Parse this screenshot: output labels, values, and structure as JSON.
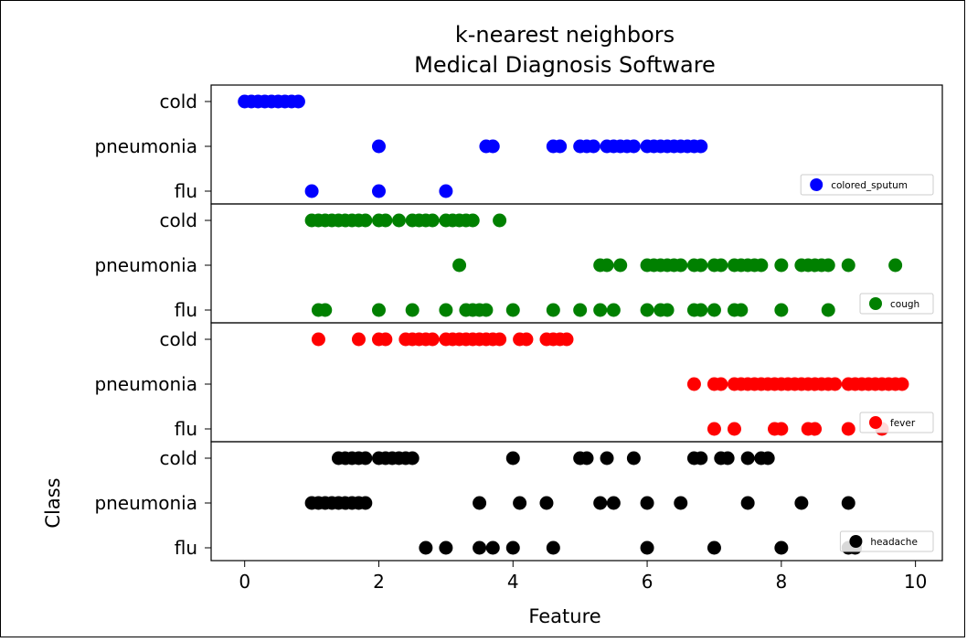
{
  "chart_data": {
    "type": "scatter",
    "title": "k-nearest neighbors\nMedical Diagnosis Software",
    "title_lines": [
      "k-nearest neighbors",
      "Medical Diagnosis Software"
    ],
    "xlabel": "Feature",
    "ylabel": "Class",
    "xlim": [
      -0.5,
      10.4
    ],
    "xticks": [
      0,
      2,
      4,
      6,
      8,
      10
    ],
    "categories": [
      "cold",
      "pneumonia",
      "flu"
    ],
    "grid": false,
    "legend_position": "lower right of each panel",
    "panels": [
      {
        "name": "colored_sputum",
        "color": "#0000ff",
        "series": {
          "cold": [
            0,
            0.1,
            0.2,
            0.3,
            0.4,
            0.5,
            0.6,
            0.7,
            0.8
          ],
          "pneumonia": [
            2.0,
            3.6,
            3.7,
            4.6,
            4.7,
            5.0,
            5.1,
            5.2,
            5.4,
            5.5,
            5.6,
            5.7,
            5.8,
            6.0,
            6.1,
            6.2,
            6.3,
            6.4,
            6.5,
            6.6,
            6.7,
            6.8
          ],
          "flu": [
            1.0,
            2.0,
            3.0
          ]
        }
      },
      {
        "name": "cough",
        "color": "#008000",
        "series": {
          "cold": [
            1.0,
            1.1,
            1.2,
            1.3,
            1.4,
            1.5,
            1.6,
            1.7,
            1.8,
            2.0,
            2.1,
            2.3,
            2.5,
            2.6,
            2.7,
            2.8,
            3.0,
            3.1,
            3.2,
            3.3,
            3.4,
            3.8
          ],
          "pneumonia": [
            3.2,
            5.3,
            5.4,
            5.6,
            6.0,
            6.1,
            6.2,
            6.3,
            6.4,
            6.5,
            6.7,
            6.8,
            7.0,
            7.1,
            7.3,
            7.4,
            7.5,
            7.6,
            7.7,
            8.0,
            8.3,
            8.4,
            8.5,
            8.6,
            8.7,
            9.0,
            9.7
          ],
          "flu": [
            1.1,
            1.2,
            2.0,
            2.5,
            3.0,
            3.3,
            3.4,
            3.5,
            3.6,
            4.0,
            4.6,
            5.0,
            5.3,
            5.5,
            6.0,
            6.2,
            6.3,
            6.7,
            6.8,
            7.0,
            7.3,
            7.4,
            8.0,
            8.7
          ]
        }
      },
      {
        "name": "fever",
        "color": "#ff0000",
        "series": {
          "cold": [
            1.1,
            1.7,
            2.0,
            2.1,
            2.4,
            2.5,
            2.6,
            2.7,
            2.8,
            3.0,
            3.1,
            3.2,
            3.3,
            3.4,
            3.5,
            3.6,
            3.7,
            3.8,
            4.1,
            4.2,
            4.5,
            4.6,
            4.7,
            4.8
          ],
          "pneumonia": [
            6.7,
            7.0,
            7.1,
            7.3,
            7.4,
            7.5,
            7.6,
            7.7,
            7.8,
            7.9,
            8.0,
            8.1,
            8.2,
            8.3,
            8.4,
            8.5,
            8.6,
            8.7,
            8.8,
            9.0,
            9.1,
            9.2,
            9.3,
            9.4,
            9.5,
            9.6,
            9.7,
            9.8
          ],
          "flu": [
            7.0,
            7.3,
            7.9,
            8.0,
            8.4,
            8.5,
            9.0,
            9.5
          ]
        }
      },
      {
        "name": "headache",
        "color": "#000000",
        "series": {
          "cold": [
            1.4,
            1.5,
            1.6,
            1.7,
            1.8,
            2.0,
            2.1,
            2.2,
            2.3,
            2.4,
            2.5,
            4.0,
            5.0,
            5.1,
            5.4,
            5.8,
            6.7,
            6.8,
            7.1,
            7.2,
            7.5,
            7.7,
            7.8
          ],
          "pneumonia": [
            1.0,
            1.1,
            1.2,
            1.3,
            1.4,
            1.5,
            1.6,
            1.7,
            1.8,
            3.5,
            4.1,
            4.5,
            5.3,
            5.5,
            6.0,
            6.5,
            7.5,
            8.3,
            9.0
          ],
          "flu": [
            2.7,
            3.0,
            3.5,
            3.7,
            4.0,
            4.6,
            6.0,
            7.0,
            8.0,
            9.0,
            9.1
          ]
        }
      }
    ]
  }
}
